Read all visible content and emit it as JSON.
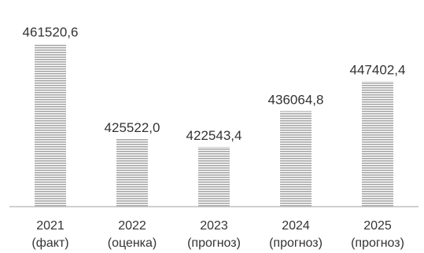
{
  "chart_data": {
    "type": "bar",
    "title": "",
    "xlabel": "",
    "ylabel": "",
    "categories": [
      [
        "2021",
        "(факт)"
      ],
      [
        "2022",
        "(оценка)"
      ],
      [
        "2023",
        "(прогноз)"
      ],
      [
        "2024",
        "(прогноз)"
      ],
      [
        "2025",
        "(прогноз)"
      ]
    ],
    "values": [
      461520.6,
      425522.0,
      422543.4,
      436064.8,
      447402.4
    ],
    "value_labels": [
      "461520,6",
      "425522,0",
      "422543,4",
      "436064,8",
      "447402,4"
    ],
    "ylim": [
      400000,
      465000
    ],
    "grid": false,
    "legend": "none",
    "colors": {
      "bar_fill": "#ffffff",
      "bar_stripe": "#a6a6a6",
      "axis": "#bfbfbf",
      "text": "#333333"
    }
  }
}
